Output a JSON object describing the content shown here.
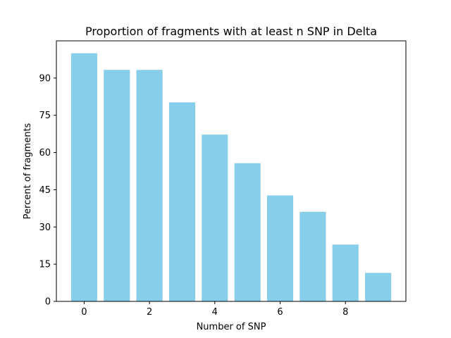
{
  "chart_data": {
    "type": "bar",
    "title": "Proportion of fragments with at least n SNP in Delta",
    "xlabel": "Number of SNP",
    "ylabel": "Percent of fragments",
    "x": [
      0,
      1,
      2,
      3,
      4,
      5,
      6,
      7,
      8,
      9
    ],
    "values": [
      100,
      93.3,
      93.3,
      80.2,
      67.2,
      55.7,
      42.7,
      36.1,
      22.9,
      11.5
    ],
    "xticks": [
      0,
      2,
      4,
      6,
      8
    ],
    "yticks": [
      0,
      15,
      30,
      45,
      60,
      75,
      90
    ],
    "xlim": [
      -0.85,
      9.85
    ],
    "ylim": [
      0,
      105
    ],
    "bar_color": "#87ceeb",
    "grid": false,
    "legend": false
  }
}
